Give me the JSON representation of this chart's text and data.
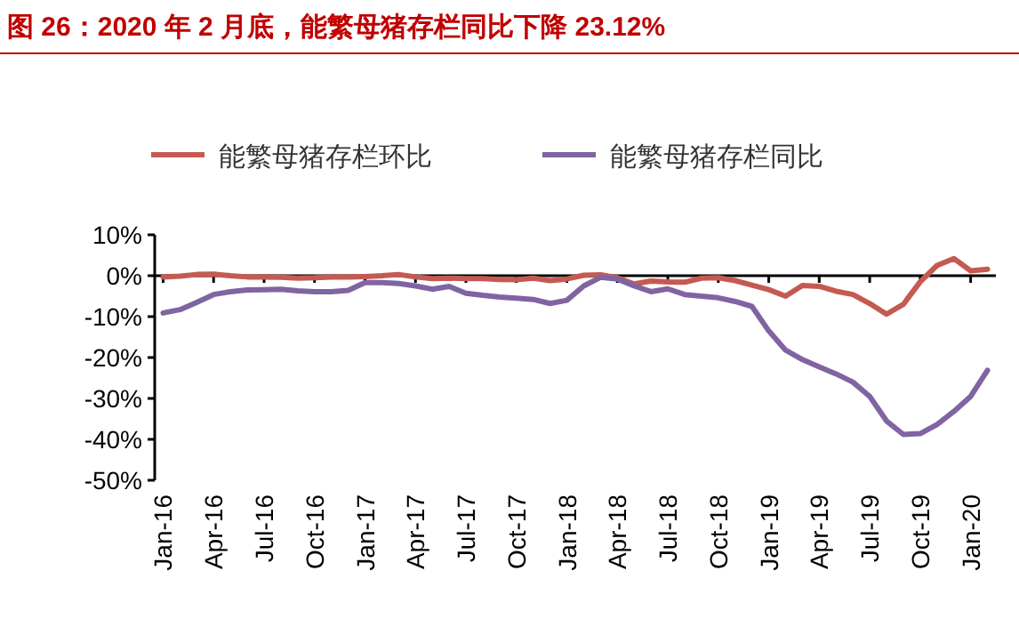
{
  "chart_data": {
    "type": "line",
    "title": "图 26：2020 年 2 月底，能繁母猪存栏同比下降 23.12%",
    "categories": [
      "Jan-16",
      null,
      null,
      "Apr-16",
      null,
      null,
      "Jul-16",
      null,
      null,
      "Oct-16",
      null,
      null,
      "Jan-17",
      null,
      null,
      "Apr-17",
      null,
      null,
      "Jul-17",
      null,
      null,
      "Oct-17",
      null,
      null,
      "Jan-18",
      null,
      null,
      "Apr-18",
      null,
      null,
      "Jul-18",
      null,
      null,
      "Oct-18",
      null,
      null,
      "Jan-19",
      null,
      null,
      "Apr-19",
      null,
      null,
      "Jul-19",
      null,
      null,
      "Oct-19",
      null,
      null,
      "Jan-20",
      null
    ],
    "series": [
      {
        "name": "能繁母猪存栏环比",
        "color": "#c55a52",
        "values": [
          -0.3,
          -0.1,
          0.3,
          0.4,
          0,
          -0.3,
          -0.3,
          -0.4,
          -0.6,
          -0.5,
          -0.3,
          -0.3,
          -0.2,
          0,
          0.3,
          -0.3,
          -0.7,
          -0.6,
          -0.7,
          -0.7,
          -0.9,
          -1.0,
          -0.6,
          -1.2,
          -0.8,
          0.1,
          0.2,
          -0.5,
          -2.0,
          -1.3,
          -1.5,
          -1.6,
          -0.6,
          -0.5,
          -1.2,
          -2.3,
          -3.4,
          -5.0,
          -2.4,
          -2.6,
          -3.8,
          -4.6,
          -6.8,
          -9.4,
          -7.0,
          -1.5,
          2.5,
          4.2,
          1.2,
          1.6
        ]
      },
      {
        "name": "能繁母猪存栏同比",
        "color": "#8064a2",
        "values": [
          -9.1,
          -8.3,
          -6.5,
          -4.6,
          -3.9,
          -3.5,
          -3.4,
          -3.3,
          -3.7,
          -3.9,
          -3.9,
          -3.6,
          -1.7,
          -1.7,
          -1.9,
          -2.5,
          -3.3,
          -2.6,
          -4.3,
          -4.8,
          -5.2,
          -5.5,
          -5.8,
          -6.8,
          -6.0,
          -2.5,
          -0.4,
          -0.8,
          -2.5,
          -3.9,
          -3.2,
          -4.6,
          -5.0,
          -5.4,
          -6.3,
          -7.5,
          -13.5,
          -18.2,
          -20.5,
          -22.3,
          -24.0,
          -26.0,
          -29.5,
          -35.5,
          -38.8,
          -38.6,
          -36.4,
          -33.2,
          -29.5,
          -23.12
        ]
      }
    ],
    "ylim": [
      -50,
      10
    ],
    "yticks": [
      {
        "value": 10,
        "label": "10%"
      },
      {
        "value": 0,
        "label": "0%"
      },
      {
        "value": -10,
        "label": "-10%"
      },
      {
        "value": -20,
        "label": "-20%"
      },
      {
        "value": -30,
        "label": "-30%"
      },
      {
        "value": -40,
        "label": "-40%"
      },
      {
        "value": -50,
        "label": "-50%"
      }
    ],
    "legend": "top",
    "marker": "none",
    "line_style": "solid"
  }
}
